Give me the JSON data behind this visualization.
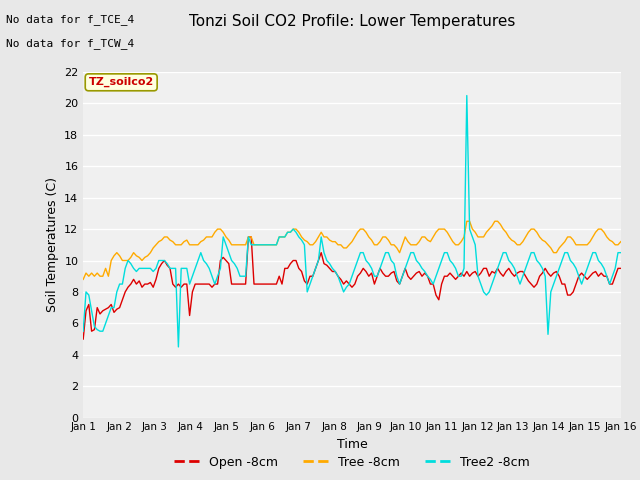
{
  "title": "Tonzi Soil CO2 Profile: Lower Temperatures",
  "xlabel": "Time",
  "ylabel": "Soil Temperatures (C)",
  "top_left_text_line1": "No data for f_TCE_4",
  "top_left_text_line2": "No data for f_TCW_4",
  "legend_box_text": "TZ_soilco2",
  "ylim": [
    0,
    22
  ],
  "yticks": [
    0,
    2,
    4,
    6,
    8,
    10,
    12,
    14,
    16,
    18,
    20,
    22
  ],
  "xtick_labels": [
    "Jan 1",
    "Jan 2",
    "Jan 3",
    "Jan 4",
    "Jan 5",
    "Jan 6",
    "Jan 7",
    "Jan 8",
    "Jan 9",
    "Jan 10",
    "Jan 11",
    "Jan 12",
    "Jan 13",
    "Jan 14",
    "Jan 15",
    "Jan 16"
  ],
  "bg_color": "#e8e8e8",
  "plot_bg_color": "#f0f0f0",
  "line_open_color": "#dd0000",
  "line_tree_color": "#ffaa00",
  "line_tree2_color": "#00dddd",
  "open_8cm": [
    5.0,
    6.8,
    7.2,
    5.5,
    5.6,
    7.0,
    6.6,
    6.8,
    6.9,
    7.0,
    7.2,
    6.7,
    6.9,
    7.0,
    7.5,
    8.0,
    8.3,
    8.5,
    8.8,
    8.5,
    8.7,
    8.3,
    8.5,
    8.5,
    8.6,
    8.3,
    8.8,
    9.5,
    9.8,
    10.0,
    9.7,
    9.5,
    8.5,
    8.3,
    8.5,
    8.3,
    8.5,
    8.5,
    6.5,
    8.0,
    8.5,
    8.5,
    8.5,
    8.5,
    8.5,
    8.5,
    8.3,
    8.5,
    8.5,
    10.0,
    10.2,
    10.0,
    9.8,
    8.5,
    8.5,
    8.5,
    8.5,
    8.5,
    8.5,
    11.5,
    11.5,
    8.5,
    8.5,
    8.5,
    8.5,
    8.5,
    8.5,
    8.5,
    8.5,
    8.5,
    9.0,
    8.5,
    9.5,
    9.5,
    9.8,
    10.0,
    10.0,
    9.5,
    9.3,
    8.7,
    8.5,
    9.0,
    9.0,
    9.5,
    10.0,
    10.5,
    9.8,
    9.7,
    9.5,
    9.3,
    9.3,
    9.0,
    8.8,
    8.5,
    8.7,
    8.5,
    8.3,
    8.5,
    9.0,
    9.2,
    9.5,
    9.3,
    9.0,
    9.2,
    8.5,
    9.0,
    9.5,
    9.2,
    9.0,
    9.0,
    9.2,
    9.3,
    8.7,
    8.5,
    9.0,
    9.5,
    9.0,
    8.8,
    9.0,
    9.2,
    9.3,
    9.0,
    9.2,
    9.0,
    8.5,
    8.5,
    7.8,
    7.5,
    8.5,
    9.0,
    9.0,
    9.2,
    9.0,
    8.8,
    9.0,
    9.2,
    9.0,
    9.3,
    9.0,
    9.2,
    9.3,
    9.0,
    9.2,
    9.5,
    9.5,
    9.0,
    9.3,
    9.2,
    9.5,
    9.2,
    9.0,
    9.3,
    9.5,
    9.2,
    9.0,
    9.2,
    9.3,
    9.3,
    9.0,
    8.7,
    8.5,
    8.3,
    8.5,
    9.0,
    9.2,
    9.5,
    9.2,
    9.0,
    9.2,
    9.3,
    9.0,
    8.5,
    8.5,
    7.8,
    7.8,
    8.0,
    8.5,
    9.0,
    9.2,
    9.0,
    8.8,
    9.0,
    9.2,
    9.3,
    9.0,
    9.2,
    9.0,
    9.0,
    8.5,
    8.5,
    9.0,
    9.5,
    9.5,
    9.5,
    9.0,
    9.2,
    9.5,
    9.3
  ],
  "tree_8cm": [
    8.8,
    9.2,
    9.0,
    9.2,
    9.0,
    9.2,
    9.0,
    9.0,
    9.5,
    9.0,
    10.0,
    10.3,
    10.5,
    10.3,
    10.0,
    10.0,
    10.0,
    10.2,
    10.5,
    10.3,
    10.2,
    10.0,
    10.2,
    10.3,
    10.5,
    10.8,
    11.0,
    11.2,
    11.3,
    11.5,
    11.5,
    11.3,
    11.2,
    11.0,
    11.0,
    11.0,
    11.2,
    11.3,
    11.0,
    11.0,
    11.0,
    11.0,
    11.2,
    11.3,
    11.5,
    11.5,
    11.5,
    11.8,
    12.0,
    12.0,
    11.8,
    11.5,
    11.3,
    11.0,
    11.0,
    11.0,
    11.0,
    11.0,
    11.0,
    11.5,
    11.5,
    11.0,
    11.0,
    11.0,
    11.0,
    11.0,
    11.0,
    11.0,
    11.0,
    11.0,
    11.5,
    11.5,
    11.5,
    11.8,
    11.8,
    12.0,
    12.0,
    11.8,
    11.5,
    11.3,
    11.2,
    11.0,
    11.0,
    11.2,
    11.5,
    11.8,
    11.5,
    11.5,
    11.3,
    11.2,
    11.2,
    11.0,
    11.0,
    10.8,
    10.8,
    11.0,
    11.2,
    11.5,
    11.8,
    12.0,
    12.0,
    11.8,
    11.5,
    11.3,
    11.0,
    11.0,
    11.2,
    11.5,
    11.5,
    11.3,
    11.0,
    11.0,
    10.8,
    10.5,
    11.0,
    11.5,
    11.2,
    11.0,
    11.0,
    11.0,
    11.2,
    11.5,
    11.5,
    11.3,
    11.2,
    11.5,
    11.8,
    12.0,
    12.0,
    12.0,
    11.8,
    11.5,
    11.2,
    11.0,
    11.0,
    11.2,
    11.5,
    12.5,
    12.5,
    12.0,
    11.8,
    11.5,
    11.5,
    11.5,
    11.8,
    12.0,
    12.2,
    12.5,
    12.5,
    12.3,
    12.0,
    11.8,
    11.5,
    11.3,
    11.2,
    11.0,
    11.0,
    11.2,
    11.5,
    11.8,
    12.0,
    12.0,
    11.8,
    11.5,
    11.3,
    11.2,
    11.0,
    10.8,
    10.5,
    10.5,
    10.8,
    11.0,
    11.2,
    11.5,
    11.5,
    11.3,
    11.0,
    11.0,
    11.0,
    11.0,
    11.0,
    11.2,
    11.5,
    11.8,
    12.0,
    12.0,
    11.8,
    11.5,
    11.3,
    11.2,
    11.0,
    11.0,
    11.2,
    11.5,
    11.8,
    11.5,
    11.3
  ],
  "tree2_8cm": [
    5.5,
    8.0,
    7.8,
    6.8,
    5.8,
    5.6,
    5.5,
    5.5,
    6.0,
    6.5,
    7.0,
    7.0,
    8.0,
    8.5,
    8.5,
    9.5,
    10.0,
    9.8,
    9.5,
    9.3,
    9.5,
    9.5,
    9.5,
    9.5,
    9.5,
    9.3,
    9.5,
    10.0,
    10.0,
    10.0,
    9.8,
    9.5,
    9.5,
    9.5,
    4.5,
    9.5,
    9.5,
    9.5,
    8.5,
    9.0,
    9.5,
    10.0,
    10.5,
    10.0,
    9.8,
    9.5,
    9.0,
    8.5,
    9.0,
    9.5,
    11.5,
    11.0,
    10.5,
    10.0,
    9.8,
    9.5,
    9.0,
    9.0,
    9.0,
    11.5,
    11.0,
    11.0,
    11.0,
    11.0,
    11.0,
    11.0,
    11.0,
    11.0,
    11.0,
    11.0,
    11.5,
    11.5,
    11.5,
    11.8,
    11.8,
    12.0,
    11.8,
    11.5,
    11.3,
    11.0,
    8.0,
    8.5,
    9.0,
    9.5,
    10.0,
    11.5,
    10.5,
    10.0,
    9.8,
    9.5,
    9.3,
    9.0,
    8.5,
    8.0,
    8.3,
    8.5,
    9.0,
    9.5,
    10.0,
    10.5,
    10.5,
    10.0,
    9.8,
    9.5,
    9.0,
    9.0,
    9.5,
    10.0,
    10.5,
    10.5,
    10.0,
    9.8,
    9.0,
    8.5,
    9.0,
    9.5,
    10.0,
    10.5,
    10.5,
    10.0,
    9.8,
    9.5,
    9.3,
    9.0,
    8.8,
    8.5,
    9.0,
    9.5,
    10.0,
    10.5,
    10.5,
    10.0,
    9.8,
    9.5,
    9.0,
    9.0,
    9.5,
    20.5,
    12.0,
    11.5,
    11.0,
    9.0,
    8.5,
    8.0,
    7.8,
    8.0,
    8.5,
    9.0,
    9.5,
    10.0,
    10.5,
    10.5,
    10.0,
    9.8,
    9.5,
    9.0,
    8.5,
    9.0,
    9.5,
    10.0,
    10.5,
    10.5,
    10.0,
    9.8,
    9.5,
    9.0,
    5.3,
    8.0,
    8.5,
    9.0,
    9.5,
    10.0,
    10.5,
    10.5,
    10.0,
    9.8,
    9.5,
    9.0,
    8.5,
    9.0,
    9.5,
    10.0,
    10.5,
    10.5,
    10.0,
    9.8,
    9.5,
    9.0,
    8.5,
    9.0,
    9.5,
    10.5,
    10.5,
    10.5,
    10.0,
    9.8,
    9.5,
    9.0,
    9.0
  ],
  "n_points": 193,
  "legend_entries": [
    "Open -8cm",
    "Tree -8cm",
    "Tree2 -8cm"
  ],
  "legend_colors": [
    "#dd0000",
    "#ffaa00",
    "#00dddd"
  ]
}
